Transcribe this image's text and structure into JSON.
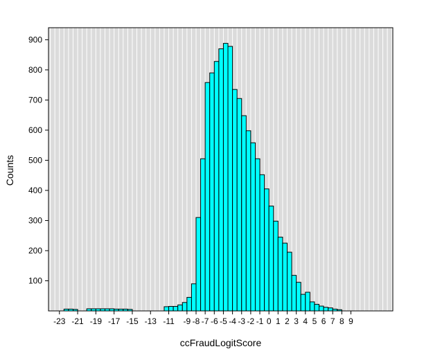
{
  "chart_data": {
    "type": "bar",
    "subtype": "histogram",
    "title": "",
    "xlabel": "ccFraudLogitScore",
    "ylabel": "Counts",
    "bin_width": 0.5,
    "bins": [
      [
        -22.5,
        6
      ],
      [
        -22.0,
        6
      ],
      [
        -21.5,
        5
      ],
      [
        -20.0,
        7
      ],
      [
        -19.5,
        7
      ],
      [
        -19.0,
        7
      ],
      [
        -18.5,
        7
      ],
      [
        -18.0,
        7
      ],
      [
        -17.5,
        7
      ],
      [
        -17.0,
        6
      ],
      [
        -16.5,
        6
      ],
      [
        -16.0,
        6
      ],
      [
        -15.5,
        5
      ],
      [
        -11.5,
        14
      ],
      [
        -11.0,
        15
      ],
      [
        -10.5,
        15
      ],
      [
        -10.0,
        20
      ],
      [
        -9.5,
        28
      ],
      [
        -9.0,
        45
      ],
      [
        -8.5,
        90
      ],
      [
        -8.0,
        310
      ],
      [
        -7.5,
        505
      ],
      [
        -7.0,
        758
      ],
      [
        -6.5,
        790
      ],
      [
        -6.0,
        828
      ],
      [
        -5.5,
        870
      ],
      [
        -5.0,
        888
      ],
      [
        -4.5,
        878
      ],
      [
        -4.0,
        735
      ],
      [
        -3.5,
        705
      ],
      [
        -3.0,
        648
      ],
      [
        -2.5,
        598
      ],
      [
        -2.0,
        558
      ],
      [
        -1.5,
        505
      ],
      [
        -1.0,
        452
      ],
      [
        -0.5,
        405
      ],
      [
        0.0,
        348
      ],
      [
        0.5,
        298
      ],
      [
        1.0,
        245
      ],
      [
        1.5,
        225
      ],
      [
        2.0,
        195
      ],
      [
        2.5,
        118
      ],
      [
        3.0,
        95
      ],
      [
        3.5,
        55
      ],
      [
        4.0,
        62
      ],
      [
        4.5,
        30
      ],
      [
        5.0,
        22
      ],
      [
        5.5,
        16
      ],
      [
        6.0,
        12
      ],
      [
        6.5,
        10
      ],
      [
        7.0,
        6
      ],
      [
        7.5,
        4
      ]
    ],
    "x_ticks": [
      -23,
      -21,
      -19,
      -17,
      -15,
      -13,
      -11,
      -9,
      -8,
      -7,
      -6,
      -5,
      -4,
      -3,
      -2,
      -1,
      0,
      1,
      2,
      3,
      4,
      5,
      6,
      7,
      8,
      9
    ],
    "y_ticks": [
      100,
      200,
      300,
      400,
      500,
      600,
      700,
      800,
      900
    ],
    "xlim": [
      -24.2,
      13.6
    ],
    "ylim": [
      0,
      940
    ],
    "grid_step": 0.5,
    "colors": {
      "bar_fill": "#00FFFF",
      "bar_stroke": "#000000",
      "panel_bg": "#DBDBDB",
      "grid": "#FFFFFF",
      "axis": "#000000",
      "text": "#000000"
    },
    "legend": "none",
    "grid": "vertical-only"
  }
}
